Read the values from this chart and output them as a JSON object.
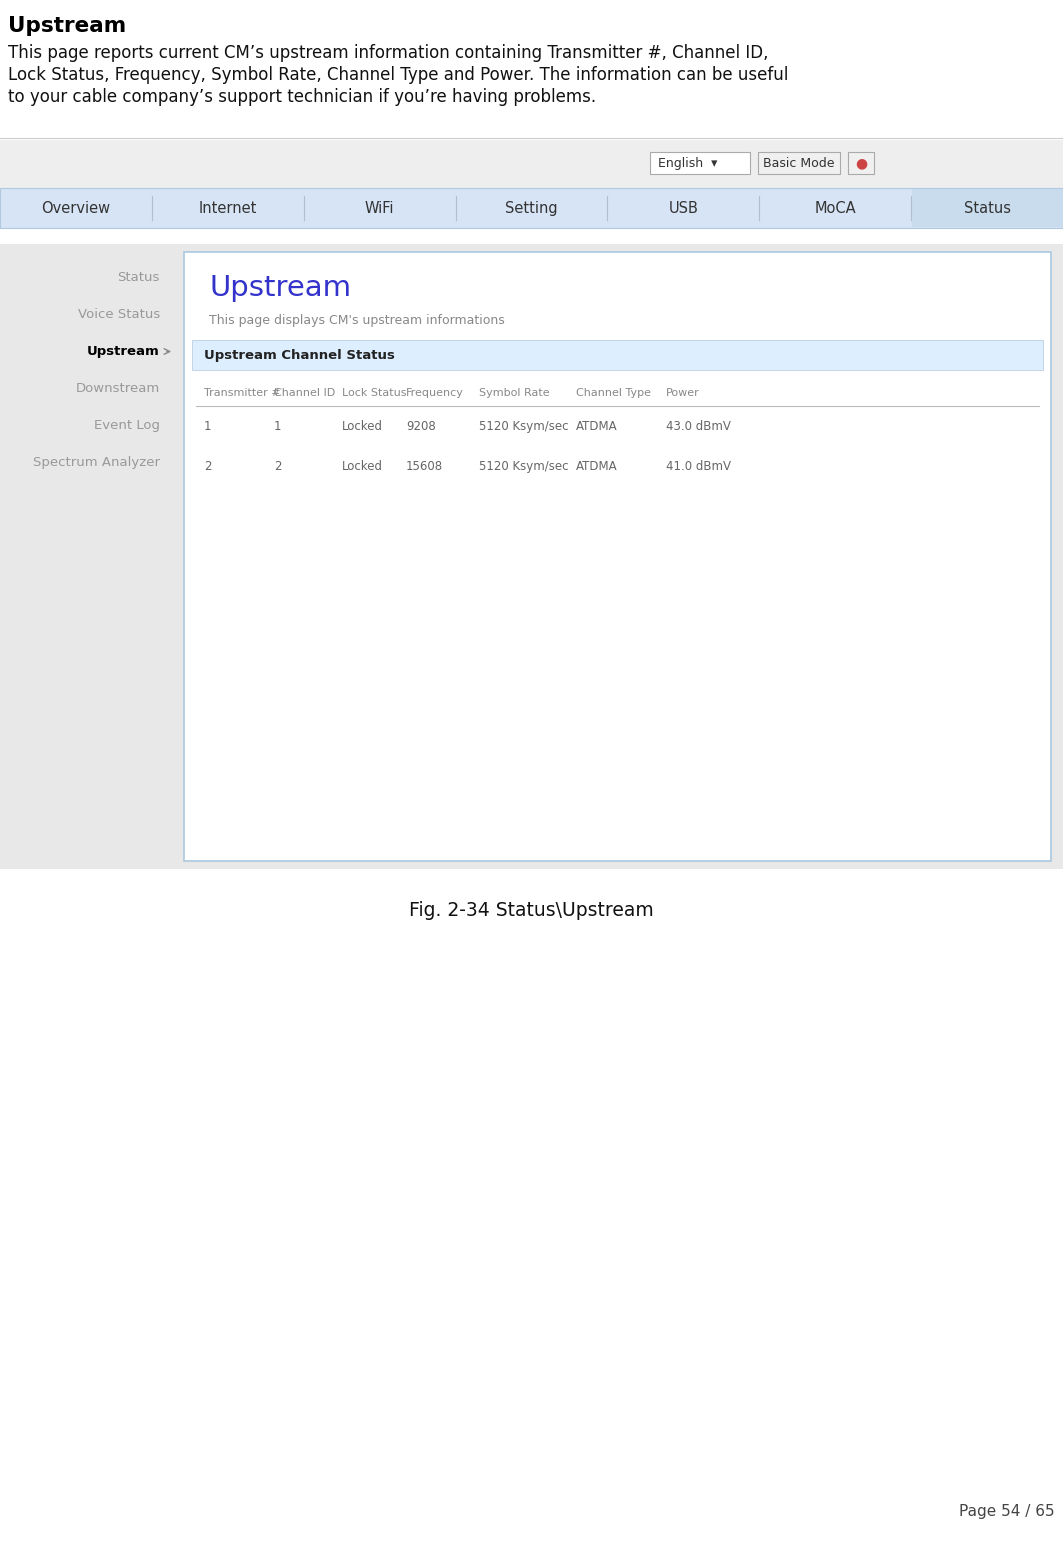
{
  "page_title": "Upstream",
  "page_desc_line1": "This page reports current CM’s upstream information containing Transmitter #, Channel ID,",
  "page_desc_line2": "Lock Status, Frequency, Symbol Rate, Channel Type and Power. The information can be useful",
  "page_desc_line3": "to your cable company’s support technician if you’re having problems.",
  "nav_tabs": [
    "Overview",
    "Internet",
    "WiFi",
    "Setting",
    "USB",
    "MoCA",
    "Status"
  ],
  "active_tab": "Status",
  "sidebar_items": [
    "Status",
    "Voice Status",
    "Upstream",
    "Downstream",
    "Event Log",
    "Spectrum Analyzer"
  ],
  "active_sidebar": "Upstream",
  "content_title": "Upstream",
  "content_subtitle": "This page displays CM's upstream informations",
  "section_header": "Upstream Channel Status",
  "table_headers": [
    "Transmitter #",
    "Channel ID",
    "Lock Status",
    "Frequency",
    "Symbol Rate",
    "Channel Type",
    "Power"
  ],
  "table_data": [
    [
      "1",
      "1",
      "Locked",
      "9208",
      "5120 Ksym/sec",
      "ATDMA",
      "43.0 dBmV"
    ],
    [
      "2",
      "2",
      "Locked",
      "15608",
      "5120 Ksym/sec",
      "ATDMA",
      "41.0 dBmV"
    ]
  ],
  "fig_caption": "Fig. 2-34 Status\\Upstream",
  "page_number": "Page 54 / 65",
  "bg_color": "#ffffff",
  "outer_bg": "#e8e8e8",
  "nav_bg": "#d6e4f5",
  "nav_border": "#b0c8e0",
  "nav_active_bg": "#c8dced",
  "content_bg": "#ffffff",
  "content_border": "#aac8e0",
  "section_header_bg": "#ddeeff",
  "section_border": "#b0c8e0",
  "title_color": "#3333cc",
  "sidebar_text_color": "#999999",
  "active_sidebar_color": "#000000",
  "nav_text_color": "#333333",
  "table_text_color": "#666666",
  "caption_color": "#111111",
  "pagenum_color": "#444444",
  "dropdown_bg": "#ffffff",
  "dropdown_border": "#aaaaaa"
}
